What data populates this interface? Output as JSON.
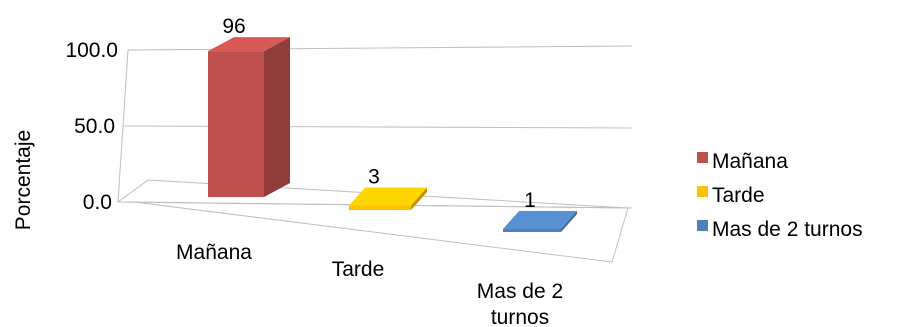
{
  "chart_data": {
    "type": "bar",
    "ylabel": "Porcentaje",
    "ylim": [
      0,
      100
    ],
    "yticks": [
      "0.0",
      "50.0",
      "100.0"
    ],
    "ytick_values": [
      0,
      50,
      100
    ],
    "grid": true,
    "legend_position": "right",
    "categories": [
      "Mañana",
      "Tarde",
      "Mas de 2 turnos"
    ],
    "category_labels": [
      [
        "Mañana"
      ],
      [
        "Tarde"
      ],
      [
        "Mas de 2",
        "turnos"
      ]
    ],
    "values": [
      96,
      3,
      1
    ],
    "data_labels": [
      "96",
      "3",
      "1"
    ],
    "series": [
      {
        "name": "Mañana",
        "value": 96,
        "color": "#C0504D"
      },
      {
        "name": "Tarde",
        "value": 3,
        "color": "#FFC000"
      },
      {
        "name": "Mas de 2 turnos",
        "value": 1,
        "color": "#4F81BD"
      }
    ]
  }
}
